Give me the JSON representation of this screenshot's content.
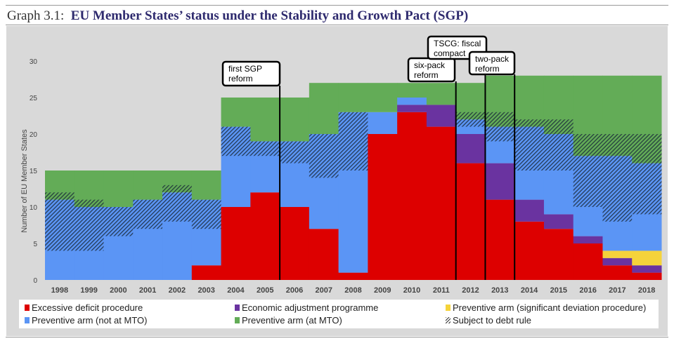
{
  "title": {
    "prefix": "Graph 3.1:",
    "main": "EU Member States’ status under the Stability and Growth Pact (SGP)"
  },
  "chart_data": {
    "type": "bar",
    "stacked": true,
    "ylabel": "Number of EU Member States",
    "ylim": [
      0,
      30
    ],
    "yticks": [
      0,
      5,
      10,
      15,
      20,
      25,
      30
    ],
    "grid": false,
    "legend_position": "bottom",
    "categories": [
      "1998",
      "1999",
      "2000",
      "2001",
      "2002",
      "2003",
      "2004",
      "2005",
      "2006",
      "2007",
      "2008",
      "2009",
      "2010",
      "2011",
      "2012",
      "2013",
      "2014",
      "2015",
      "2016",
      "2017",
      "2018"
    ],
    "series": [
      {
        "name": "Excessive deficit procedure",
        "color": "#dd0000",
        "values": [
          0,
          0,
          0,
          0,
          0,
          2,
          10,
          12,
          10,
          7,
          1,
          20,
          23,
          21,
          16,
          11,
          8,
          7,
          5,
          2,
          1
        ]
      },
      {
        "name": "Economic adjustment programme",
        "color": "#6a33a0",
        "values": [
          0,
          0,
          0,
          0,
          0,
          0,
          0,
          0,
          0,
          0,
          0,
          0,
          1,
          3,
          4,
          5,
          3,
          2,
          1,
          1,
          1
        ]
      },
      {
        "name": "Preventive arm (significant deviation procedure)",
        "color": "#f5d33a",
        "values": [
          0,
          0,
          0,
          0,
          0,
          0,
          0,
          0,
          0,
          0,
          0,
          0,
          0,
          0,
          0,
          0,
          0,
          0,
          0,
          1,
          2
        ]
      },
      {
        "name": "Preventive arm (not at MTO)",
        "color": "#5b95f5",
        "values": [
          11,
          10,
          10,
          11,
          12,
          9,
          11,
          7,
          9,
          13,
          22,
          3,
          1,
          0,
          2,
          5,
          10,
          11,
          11,
          13,
          12
        ]
      },
      {
        "name": "Preventive arm (at MTO)",
        "color": "#63ac57",
        "values": [
          4,
          5,
          5,
          4,
          3,
          4,
          4,
          6,
          6,
          7,
          4,
          4,
          2,
          3,
          5,
          7,
          7,
          8,
          11,
          11,
          12
        ]
      }
    ],
    "debt_rule": {
      "name": "Subject to debt rule",
      "ranges": [
        [
          4,
          12
        ],
        [
          4,
          11
        ],
        [
          6,
          10
        ],
        [
          7,
          11
        ],
        [
          8,
          13
        ],
        [
          7,
          11
        ],
        [
          17,
          21
        ],
        [
          17,
          19
        ],
        [
          16,
          19
        ],
        [
          14,
          20
        ],
        [
          15,
          23
        ],
        null,
        null,
        null,
        [
          21,
          23
        ],
        [
          19,
          23
        ],
        [
          15,
          22
        ],
        [
          15,
          22
        ],
        [
          10,
          20
        ],
        [
          8,
          20
        ],
        [
          9,
          20
        ]
      ]
    },
    "annotations": [
      {
        "text": "first SGP reform",
        "between": [
          "2005",
          "2006"
        ]
      },
      {
        "text": "six-pack reform",
        "between": [
          "2011",
          "2012"
        ]
      },
      {
        "text": "TSCG: fiscal compact",
        "between": [
          "2012",
          "2013"
        ]
      },
      {
        "text": "two-pack reform",
        "between": [
          "2013",
          "2014"
        ]
      }
    ]
  }
}
